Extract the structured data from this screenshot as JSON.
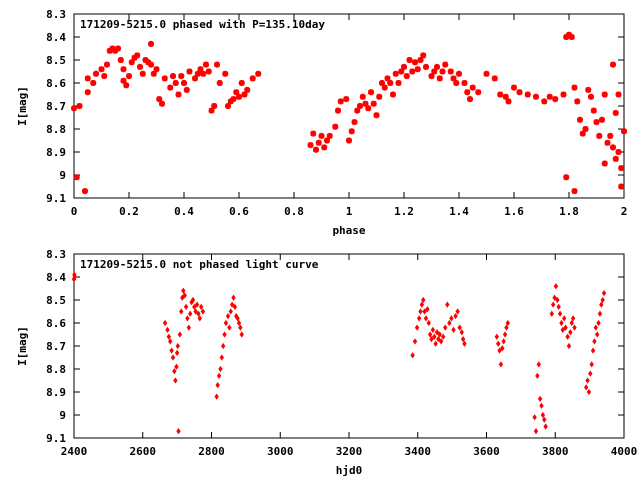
{
  "marker_color": "#ff0000",
  "chart_data": [
    {
      "type": "scatter",
      "title": "171209-5215.0 phased with P=135.10day",
      "xlabel": "phase",
      "ylabel": "I[mag]",
      "xlim": [
        0,
        2
      ],
      "ylim": [
        9.1,
        8.3
      ],
      "y_inverted": true,
      "xticks": [
        "0",
        "0.2",
        "0.4",
        "0.6",
        "0.8",
        "1",
        "1.2",
        "1.4",
        "1.6",
        "1.8",
        "2"
      ],
      "yticks": [
        "8.3",
        "8.4",
        "8.5",
        "8.6",
        "8.7",
        "8.8",
        "8.9",
        "9",
        "9.1"
      ],
      "marker": "star",
      "points": [
        [
          0.0,
          8.71
        ],
        [
          0.01,
          9.01
        ],
        [
          0.02,
          8.7
        ],
        [
          0.04,
          9.07
        ],
        [
          0.05,
          8.58
        ],
        [
          0.05,
          8.64
        ],
        [
          0.07,
          8.6
        ],
        [
          0.08,
          8.56
        ],
        [
          0.1,
          8.54
        ],
        [
          0.11,
          8.57
        ],
        [
          0.12,
          8.52
        ],
        [
          0.13,
          8.46
        ],
        [
          0.14,
          8.45
        ],
        [
          0.15,
          8.46
        ],
        [
          0.16,
          8.45
        ],
        [
          0.17,
          8.5
        ],
        [
          0.18,
          8.54
        ],
        [
          0.18,
          8.59
        ],
        [
          0.19,
          8.61
        ],
        [
          0.2,
          8.57
        ],
        [
          0.21,
          8.51
        ],
        [
          0.22,
          8.49
        ],
        [
          0.23,
          8.48
        ],
        [
          0.24,
          8.53
        ],
        [
          0.25,
          8.56
        ],
        [
          0.26,
          8.5
        ],
        [
          0.27,
          8.51
        ],
        [
          0.28,
          8.52
        ],
        [
          0.28,
          8.43
        ],
        [
          0.29,
          8.56
        ],
        [
          0.3,
          8.54
        ],
        [
          0.31,
          8.67
        ],
        [
          0.32,
          8.69
        ],
        [
          0.33,
          8.58
        ],
        [
          0.35,
          8.62
        ],
        [
          0.36,
          8.57
        ],
        [
          0.37,
          8.6
        ],
        [
          0.38,
          8.65
        ],
        [
          0.39,
          8.57
        ],
        [
          0.4,
          8.6
        ],
        [
          0.41,
          8.63
        ],
        [
          0.42,
          8.55
        ],
        [
          0.44,
          8.58
        ],
        [
          0.45,
          8.56
        ],
        [
          0.46,
          8.54
        ],
        [
          0.47,
          8.56
        ],
        [
          0.48,
          8.52
        ],
        [
          0.49,
          8.55
        ],
        [
          0.5,
          8.72
        ],
        [
          0.51,
          8.7
        ],
        [
          0.52,
          8.52
        ],
        [
          0.53,
          8.6
        ],
        [
          0.55,
          8.56
        ],
        [
          0.56,
          8.7
        ],
        [
          0.57,
          8.68
        ],
        [
          0.58,
          8.67
        ],
        [
          0.59,
          8.64
        ],
        [
          0.6,
          8.66
        ],
        [
          0.61,
          8.6
        ],
        [
          0.62,
          8.65
        ],
        [
          0.63,
          8.63
        ],
        [
          0.65,
          8.58
        ],
        [
          0.67,
          8.56
        ],
        [
          0.86,
          8.87
        ],
        [
          0.87,
          8.82
        ],
        [
          0.88,
          8.89
        ],
        [
          0.89,
          8.86
        ],
        [
          0.9,
          8.83
        ],
        [
          0.91,
          8.88
        ],
        [
          0.92,
          8.85
        ],
        [
          0.93,
          8.83
        ],
        [
          0.95,
          8.79
        ],
        [
          0.96,
          8.72
        ],
        [
          0.97,
          8.68
        ],
        [
          0.99,
          8.67
        ],
        [
          1.0,
          8.85
        ],
        [
          1.01,
          8.81
        ],
        [
          1.02,
          8.77
        ],
        [
          1.03,
          8.72
        ],
        [
          1.04,
          8.7
        ],
        [
          1.05,
          8.66
        ],
        [
          1.06,
          8.69
        ],
        [
          1.07,
          8.71
        ],
        [
          1.08,
          8.64
        ],
        [
          1.09,
          8.69
        ],
        [
          1.1,
          8.74
        ],
        [
          1.11,
          8.66
        ],
        [
          1.12,
          8.6
        ],
        [
          1.13,
          8.62
        ],
        [
          1.14,
          8.58
        ],
        [
          1.15,
          8.6
        ],
        [
          1.16,
          8.65
        ],
        [
          1.17,
          8.56
        ],
        [
          1.18,
          8.6
        ],
        [
          1.19,
          8.55
        ],
        [
          1.2,
          8.53
        ],
        [
          1.21,
          8.57
        ],
        [
          1.22,
          8.5
        ],
        [
          1.23,
          8.55
        ],
        [
          1.24,
          8.51
        ],
        [
          1.25,
          8.54
        ],
        [
          1.26,
          8.5
        ],
        [
          1.27,
          8.48
        ],
        [
          1.28,
          8.53
        ],
        [
          1.3,
          8.57
        ],
        [
          1.31,
          8.55
        ],
        [
          1.32,
          8.53
        ],
        [
          1.33,
          8.58
        ],
        [
          1.34,
          8.55
        ],
        [
          1.35,
          8.52
        ],
        [
          1.37,
          8.55
        ],
        [
          1.38,
          8.58
        ],
        [
          1.39,
          8.6
        ],
        [
          1.4,
          8.56
        ],
        [
          1.42,
          8.6
        ],
        [
          1.43,
          8.64
        ],
        [
          1.44,
          8.67
        ],
        [
          1.45,
          8.62
        ],
        [
          1.47,
          8.64
        ],
        [
          1.5,
          8.56
        ],
        [
          1.53,
          8.58
        ],
        [
          1.55,
          8.65
        ],
        [
          1.57,
          8.66
        ],
        [
          1.58,
          8.68
        ],
        [
          1.6,
          8.62
        ],
        [
          1.62,
          8.64
        ],
        [
          1.65,
          8.65
        ],
        [
          1.68,
          8.66
        ],
        [
          1.71,
          8.68
        ],
        [
          1.73,
          8.66
        ],
        [
          1.75,
          8.67
        ],
        [
          1.78,
          8.65
        ],
        [
          1.79,
          8.4
        ],
        [
          1.8,
          8.39
        ],
        [
          1.81,
          8.4
        ],
        [
          1.79,
          9.01
        ],
        [
          1.82,
          9.07
        ],
        [
          1.82,
          8.62
        ],
        [
          1.83,
          8.68
        ],
        [
          1.84,
          8.76
        ],
        [
          1.85,
          8.82
        ],
        [
          1.86,
          8.8
        ],
        [
          1.87,
          8.63
        ],
        [
          1.88,
          8.66
        ],
        [
          1.89,
          8.72
        ],
        [
          1.9,
          8.77
        ],
        [
          1.91,
          8.83
        ],
        [
          1.92,
          8.76
        ],
        [
          1.93,
          8.65
        ],
        [
          1.94,
          8.86
        ],
        [
          1.95,
          8.83
        ],
        [
          1.96,
          8.88
        ],
        [
          1.97,
          8.93
        ],
        [
          1.98,
          8.9
        ],
        [
          1.99,
          8.97
        ],
        [
          1.99,
          9.05
        ],
        [
          2.0,
          8.81
        ],
        [
          1.93,
          8.95
        ],
        [
          1.96,
          8.52
        ],
        [
          1.98,
          8.65
        ],
        [
          1.97,
          8.73
        ]
      ]
    },
    {
      "type": "scatter",
      "title": "171209-5215.0 not phased light curve",
      "xlabel": "hjd0",
      "ylabel": "I[mag]",
      "xlim": [
        2400,
        4000
      ],
      "ylim": [
        9.1,
        8.3
      ],
      "y_inverted": true,
      "xticks": [
        "2400",
        "2600",
        "2800",
        "3000",
        "3200",
        "3400",
        "3600",
        "3800",
        "4000"
      ],
      "yticks": [
        "8.3",
        "8.4",
        "8.5",
        "8.6",
        "8.7",
        "8.8",
        "8.9",
        "9",
        "9.1"
      ],
      "marker": "diamond",
      "points": [
        [
          2400,
          8.41
        ],
        [
          2401,
          8.39
        ],
        [
          2402,
          8.4
        ],
        [
          2665,
          8.6
        ],
        [
          2672,
          8.63
        ],
        [
          2676,
          8.66
        ],
        [
          2680,
          8.68
        ],
        [
          2684,
          8.72
        ],
        [
          2688,
          8.75
        ],
        [
          2692,
          8.81
        ],
        [
          2695,
          8.85
        ],
        [
          2698,
          8.79
        ],
        [
          2700,
          8.73
        ],
        [
          2702,
          8.7
        ],
        [
          2704,
          9.07
        ],
        [
          2708,
          8.65
        ],
        [
          2712,
          8.55
        ],
        [
          2715,
          8.49
        ],
        [
          2718,
          8.46
        ],
        [
          2722,
          8.48
        ],
        [
          2726,
          8.53
        ],
        [
          2730,
          8.58
        ],
        [
          2734,
          8.62
        ],
        [
          2738,
          8.56
        ],
        [
          2742,
          8.51
        ],
        [
          2746,
          8.5
        ],
        [
          2750,
          8.53
        ],
        [
          2754,
          8.55
        ],
        [
          2758,
          8.52
        ],
        [
          2762,
          8.56
        ],
        [
          2766,
          8.58
        ],
        [
          2770,
          8.53
        ],
        [
          2775,
          8.55
        ],
        [
          2815,
          8.92
        ],
        [
          2818,
          8.87
        ],
        [
          2822,
          8.83
        ],
        [
          2826,
          8.8
        ],
        [
          2830,
          8.75
        ],
        [
          2834,
          8.7
        ],
        [
          2838,
          8.65
        ],
        [
          2842,
          8.6
        ],
        [
          2848,
          8.57
        ],
        [
          2852,
          8.62
        ],
        [
          2856,
          8.55
        ],
        [
          2860,
          8.52
        ],
        [
          2864,
          8.49
        ],
        [
          2868,
          8.53
        ],
        [
          2872,
          8.57
        ],
        [
          2876,
          8.58
        ],
        [
          2880,
          8.6
        ],
        [
          2884,
          8.62
        ],
        [
          2888,
          8.65
        ],
        [
          3385,
          8.74
        ],
        [
          3392,
          8.68
        ],
        [
          3398,
          8.62
        ],
        [
          3404,
          8.58
        ],
        [
          3408,
          8.55
        ],
        [
          3412,
          8.52
        ],
        [
          3416,
          8.5
        ],
        [
          3420,
          8.55
        ],
        [
          3424,
          8.58
        ],
        [
          3428,
          8.54
        ],
        [
          3432,
          8.6
        ],
        [
          3436,
          8.65
        ],
        [
          3440,
          8.67
        ],
        [
          3444,
          8.63
        ],
        [
          3448,
          8.66
        ],
        [
          3452,
          8.69
        ],
        [
          3456,
          8.64
        ],
        [
          3460,
          8.67
        ],
        [
          3464,
          8.65
        ],
        [
          3468,
          8.68
        ],
        [
          3474,
          8.66
        ],
        [
          3480,
          8.62
        ],
        [
          3486,
          8.52
        ],
        [
          3492,
          8.6
        ],
        [
          3498,
          8.58
        ],
        [
          3504,
          8.63
        ],
        [
          3510,
          8.57
        ],
        [
          3516,
          8.55
        ],
        [
          3522,
          8.62
        ],
        [
          3528,
          8.64
        ],
        [
          3532,
          8.67
        ],
        [
          3536,
          8.69
        ],
        [
          3630,
          8.66
        ],
        [
          3634,
          8.69
        ],
        [
          3638,
          8.72
        ],
        [
          3642,
          8.78
        ],
        [
          3646,
          8.71
        ],
        [
          3650,
          8.68
        ],
        [
          3654,
          8.65
        ],
        [
          3658,
          8.62
        ],
        [
          3662,
          8.6
        ],
        [
          3740,
          9.01
        ],
        [
          3744,
          9.07
        ],
        [
          3748,
          8.83
        ],
        [
          3752,
          8.78
        ],
        [
          3756,
          8.93
        ],
        [
          3760,
          8.96
        ],
        [
          3764,
          9.0
        ],
        [
          3768,
          9.02
        ],
        [
          3772,
          9.05
        ],
        [
          3790,
          8.56
        ],
        [
          3794,
          8.52
        ],
        [
          3798,
          8.49
        ],
        [
          3802,
          8.44
        ],
        [
          3806,
          8.5
        ],
        [
          3810,
          8.53
        ],
        [
          3814,
          8.56
        ],
        [
          3818,
          8.6
        ],
        [
          3822,
          8.63
        ],
        [
          3826,
          8.58
        ],
        [
          3830,
          8.62
        ],
        [
          3836,
          8.66
        ],
        [
          3840,
          8.7
        ],
        [
          3844,
          8.64
        ],
        [
          3848,
          8.6
        ],
        [
          3852,
          8.58
        ],
        [
          3856,
          8.62
        ],
        [
          3890,
          8.88
        ],
        [
          3894,
          8.85
        ],
        [
          3898,
          8.9
        ],
        [
          3902,
          8.82
        ],
        [
          3906,
          8.78
        ],
        [
          3910,
          8.72
        ],
        [
          3914,
          8.68
        ],
        [
          3918,
          8.62
        ],
        [
          3922,
          8.65
        ],
        [
          3926,
          8.6
        ],
        [
          3930,
          8.56
        ],
        [
          3934,
          8.52
        ],
        [
          3938,
          8.5
        ],
        [
          3942,
          8.47
        ]
      ]
    }
  ]
}
